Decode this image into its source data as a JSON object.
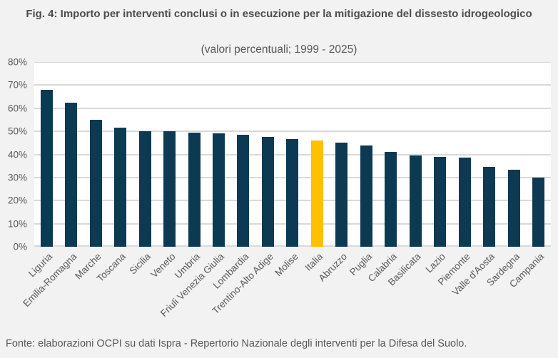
{
  "chart_data": {
    "type": "bar",
    "title": "Fig. 4: Importo per interventi conclusi o in esecuzione per la mitigazione del dissesto idrogeologico",
    "subtitle": "(valori percentuali; 1999 - 2025)",
    "source": "Fonte: elaborazioni OCPI su dati Ispra - Repertorio Nazionale degli interventi per la Difesa del Suolo.",
    "categories": [
      "Liguria",
      "Emilia-Romagna",
      "Marche",
      "Toscana",
      "Sicilia",
      "Veneto",
      "Umbria",
      "Friuli Venezia Giulia",
      "Lombardia",
      "Trentino-Alto Adige",
      "Molise",
      "Italia",
      "Abruzzo",
      "Puglia",
      "Calabria",
      "Basilicata",
      "Lazio",
      "Piemonte",
      "Valle d'Aosta",
      "Sardegna",
      "Campania"
    ],
    "values": [
      68,
      62.5,
      55,
      51.5,
      50,
      50,
      49.5,
      49,
      48.5,
      47.5,
      46.5,
      46,
      45,
      44,
      41,
      39.5,
      39,
      38.5,
      34.5,
      33.5,
      30
    ],
    "highlight_category": "Italia",
    "xlabel": "",
    "ylabel": "",
    "ylim": [
      0,
      80
    ],
    "ytick_step": 10,
    "ytick_labels": [
      "0%",
      "10%",
      "20%",
      "30%",
      "40%",
      "50%",
      "60%",
      "70%",
      "80%"
    ],
    "grid": true,
    "legend": "none",
    "colors": {
      "bar": "#0c3a53",
      "highlight_bar": "#ffc000",
      "gridline": "#d9d9d9",
      "plot_background": "#ffffff",
      "page_background": "#f2f2f2",
      "axis_text": "#595959",
      "title_text": "#4d4d4d"
    }
  }
}
